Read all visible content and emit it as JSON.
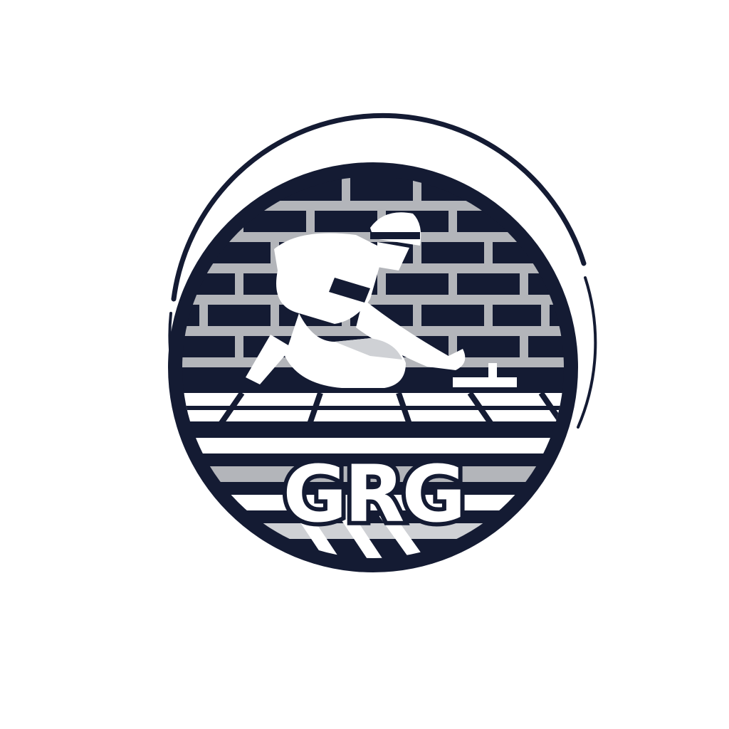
{
  "logo": {
    "wordmark": "GRG",
    "icon": "roofer-worker-icon",
    "colors": {
      "navy": "#141b33",
      "gray": "#b3b5ba",
      "light_gray": "#cfd1d5",
      "white": "#ffffff"
    }
  }
}
